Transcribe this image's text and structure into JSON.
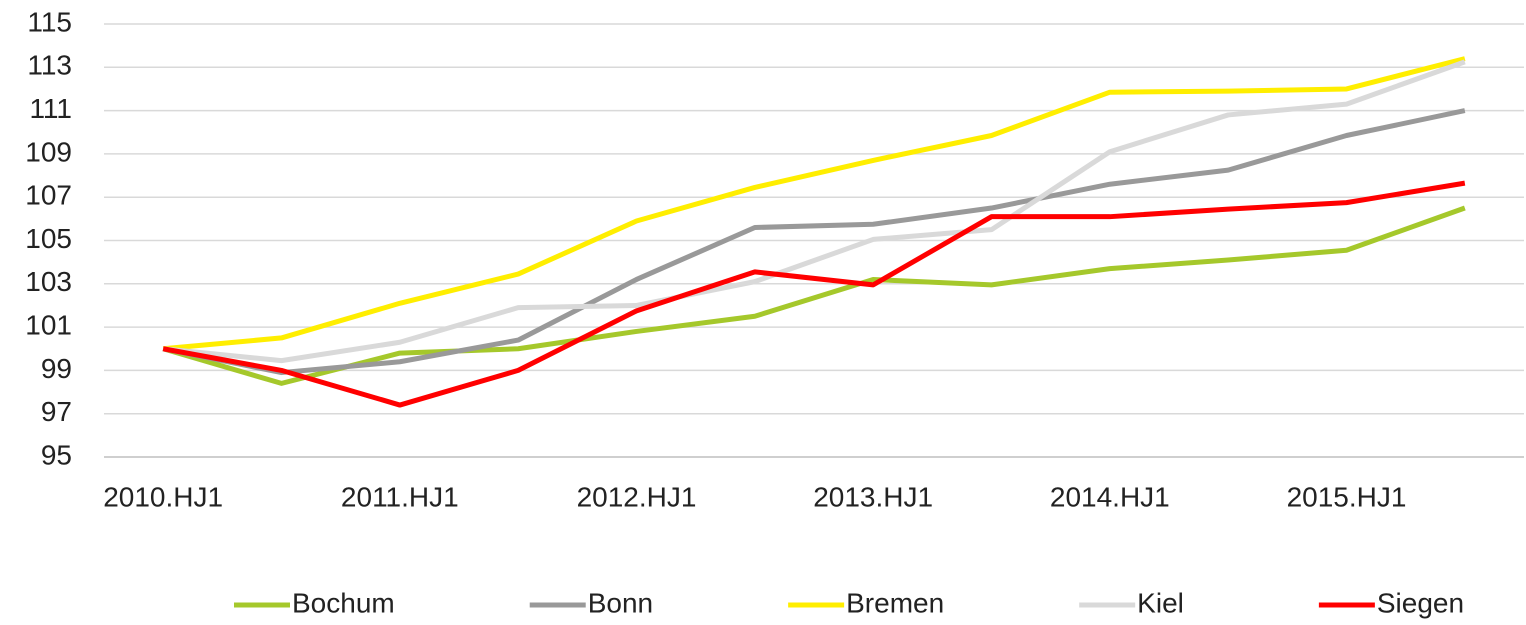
{
  "chart_data": {
    "type": "line",
    "categories": [
      "2010.HJ1",
      null,
      "2011.HJ1",
      null,
      "2012.HJ1",
      null,
      "2013.HJ1",
      null,
      "2014.HJ1",
      null,
      "2015.HJ1",
      null
    ],
    "series": [
      {
        "name": "Bochum",
        "color": "#a5c82b",
        "values": [
          100,
          98.4,
          99.8,
          100.0,
          100.8,
          101.5,
          103.2,
          102.95,
          103.7,
          104.1,
          104.55,
          106.5
        ]
      },
      {
        "name": "Bonn",
        "color": "#999999",
        "values": [
          100,
          98.9,
          99.4,
          100.4,
          103.2,
          105.6,
          105.75,
          106.5,
          107.6,
          108.25,
          109.85,
          111.0
        ]
      },
      {
        "name": "Bremen",
        "color": "#ffee00",
        "values": [
          100,
          100.5,
          102.1,
          103.45,
          105.9,
          107.45,
          108.7,
          109.85,
          111.85,
          111.9,
          112.0,
          113.4
        ]
      },
      {
        "name": "Kiel",
        "color": "#d9d9d9",
        "values": [
          100,
          99.45,
          100.3,
          101.9,
          102.0,
          103.1,
          105.05,
          105.5,
          109.1,
          110.8,
          111.3,
          113.25
        ]
      },
      {
        "name": "Siegen",
        "color": "#ff0000",
        "values": [
          100,
          99.0,
          97.4,
          99.0,
          101.75,
          103.55,
          102.95,
          106.1,
          106.1,
          106.45,
          106.75,
          107.65
        ]
      }
    ],
    "ylim": [
      95,
      115
    ],
    "yticks": [
      95,
      97,
      99,
      101,
      103,
      105,
      107,
      109,
      111,
      113,
      115
    ],
    "grid": true,
    "legend": "bottom"
  }
}
